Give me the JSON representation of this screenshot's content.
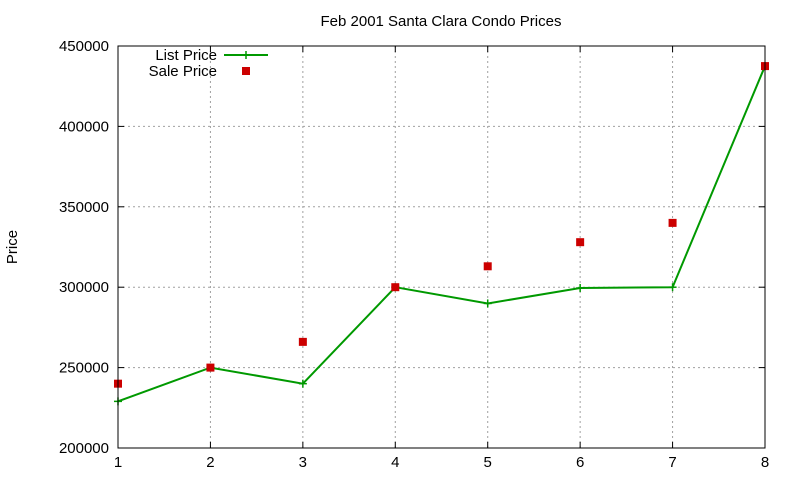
{
  "chart_data": {
    "type": "line",
    "title": "Feb 2001 Santa Clara Condo Prices",
    "xlabel": "",
    "ylabel": "Price",
    "x": [
      1,
      2,
      3,
      4,
      5,
      6,
      7,
      8
    ],
    "xlim": [
      1,
      8
    ],
    "ylim": [
      200000,
      450000
    ],
    "xticks": [
      1,
      2,
      3,
      4,
      5,
      6,
      7,
      8
    ],
    "yticks": [
      200000,
      250000,
      300000,
      350000,
      400000,
      450000
    ],
    "grid": true,
    "legend_position": "top-left",
    "series": [
      {
        "name": "List Price",
        "kind": "line",
        "marker": "plus",
        "color": "#009900",
        "values": [
          229000,
          250000,
          240000,
          300000,
          289900,
          299500,
          300000,
          437500
        ]
      },
      {
        "name": "Sale Price",
        "kind": "scatter",
        "marker": "square",
        "color": "#cc0000",
        "values": [
          240000,
          250000,
          266000,
          300000,
          313000,
          328000,
          340000,
          437500
        ]
      }
    ]
  }
}
